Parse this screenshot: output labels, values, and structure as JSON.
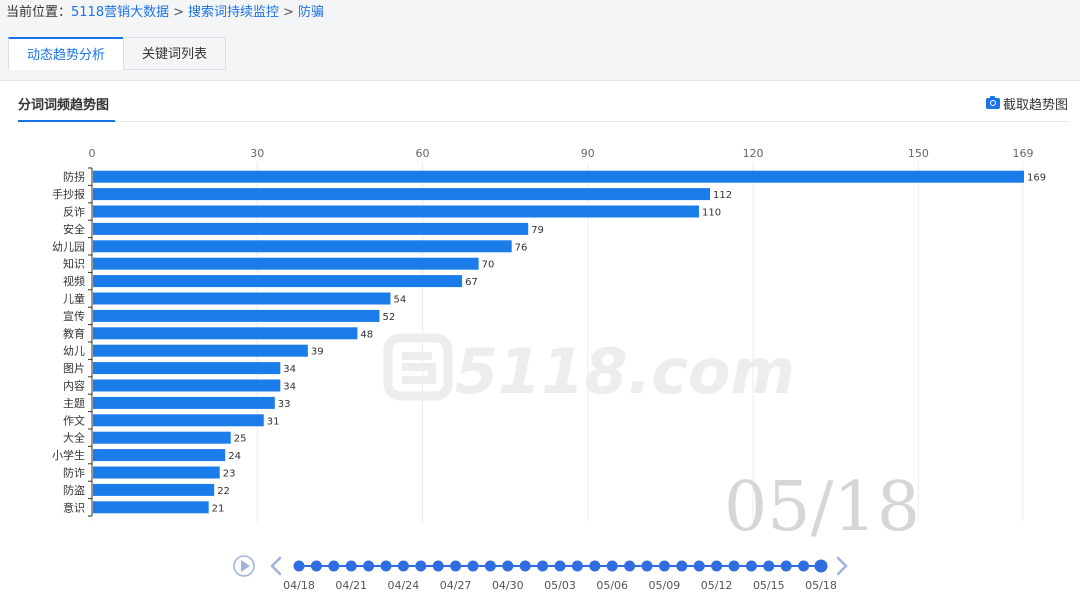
{
  "breadcrumb": {
    "prefix": "当前位置：",
    "items": [
      "5118营销大数据",
      "搜索词持续监控",
      "防骗"
    ],
    "separator": ">"
  },
  "tabs": [
    {
      "label": "动态趋势分析",
      "active": true
    },
    {
      "label": "关键词列表",
      "active": false
    }
  ],
  "panel": {
    "title": "分词词频趋势图",
    "capture_label": "截取趋势图"
  },
  "watermark": "5118.com",
  "current_date": "05/18",
  "chart_data": {
    "type": "bar",
    "orientation": "horizontal",
    "categories": [
      "防拐",
      "手抄报",
      "反诈",
      "安全",
      "幼儿园",
      "知识",
      "视频",
      "儿童",
      "宣传",
      "教育",
      "幼儿",
      "图片",
      "内容",
      "主题",
      "作文",
      "大全",
      "小学生",
      "防诈",
      "防盗",
      "意识"
    ],
    "values": [
      169,
      112,
      110,
      79,
      76,
      70,
      67,
      54,
      52,
      48,
      39,
      34,
      34,
      33,
      31,
      25,
      24,
      23,
      22,
      21
    ],
    "xticks": [
      0,
      30,
      60,
      90,
      120,
      150,
      169
    ],
    "xlim": [
      0,
      169
    ],
    "grid": true,
    "bar_color": "#1a7ce8",
    "timeline": {
      "labels": [
        "04/18",
        "04/21",
        "04/24",
        "04/27",
        "04/30",
        "05/03",
        "05/06",
        "05/09",
        "05/12",
        "05/15",
        "05/18"
      ],
      "dot_count": 31,
      "selected_index": 30,
      "dot_color": "#2f6de1"
    }
  }
}
